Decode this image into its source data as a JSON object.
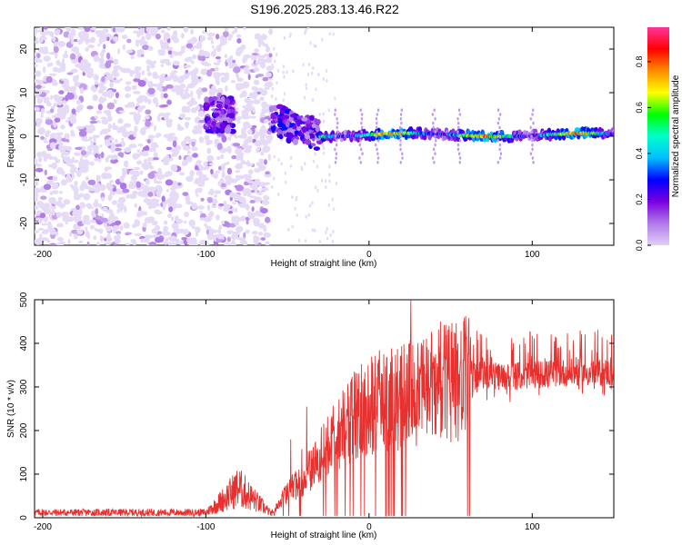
{
  "title": "S196.2025.283.13.46.R22",
  "chart_data": [
    {
      "type": "heatmap",
      "title": "S196.2025.283.13.46.R22",
      "xlabel": "Height of straight line (km)",
      "ylabel": "Frequency (Hz)",
      "xlim": [
        -205,
        150
      ],
      "ylim": [
        -25,
        25
      ],
      "xticks": [
        -200,
        -100,
        0,
        100
      ],
      "yticks": [
        -20,
        -10,
        0,
        10,
        20
      ],
      "colorbar": {
        "label": "Normalized spectral amplitude",
        "range": [
          0,
          0.95
        ],
        "ticks": [
          0.0,
          0.2,
          0.4,
          0.6,
          0.8
        ],
        "colors": [
          "#e0d0f5",
          "#b07be8",
          "#7a00e0",
          "#0000ff",
          "#00bfff",
          "#00ffcc",
          "#00ff00",
          "#ffff00",
          "#ff8c00",
          "#ff0000",
          "#ff3399"
        ]
      },
      "regions": [
        {
          "x_range": [
            -205,
            -60
          ],
          "freq_range": [
            -25,
            25
          ],
          "description": "broadband noise",
          "amplitude_range": [
            0.0,
            0.1
          ]
        },
        {
          "x_range": [
            -100,
            -85
          ],
          "freq_center": 5,
          "amplitude": 0.25
        },
        {
          "x_range": [
            -60,
            -30
          ],
          "freq_center": 3,
          "amplitude": 0.3
        },
        {
          "x_range": [
            -30,
            150
          ],
          "freq_center": 0.5,
          "amplitude_range": [
            0.4,
            0.9
          ]
        }
      ]
    },
    {
      "type": "line",
      "xlabel": "Height of straight line (km)",
      "ylabel": "SNR (10 * v/v)",
      "xlim": [
        -205,
        150
      ],
      "ylim": [
        0,
        500
      ],
      "xticks": [
        -200,
        -100,
        0,
        100
      ],
      "yticks": [
        0,
        100,
        200,
        300,
        400,
        500
      ],
      "color": "#e8312f",
      "series": [
        {
          "name": "SNR",
          "x": [
            -205,
            -100,
            -90,
            -80,
            -70,
            -60,
            -50,
            -40,
            -30,
            -20,
            -10,
            0,
            20,
            40,
            60,
            80,
            100,
            120,
            150
          ],
          "values": [
            12,
            12,
            40,
            70,
            40,
            10,
            60,
            90,
            140,
            190,
            230,
            260,
            280,
            300,
            320,
            310,
            315,
            320,
            320
          ]
        }
      ]
    }
  ]
}
